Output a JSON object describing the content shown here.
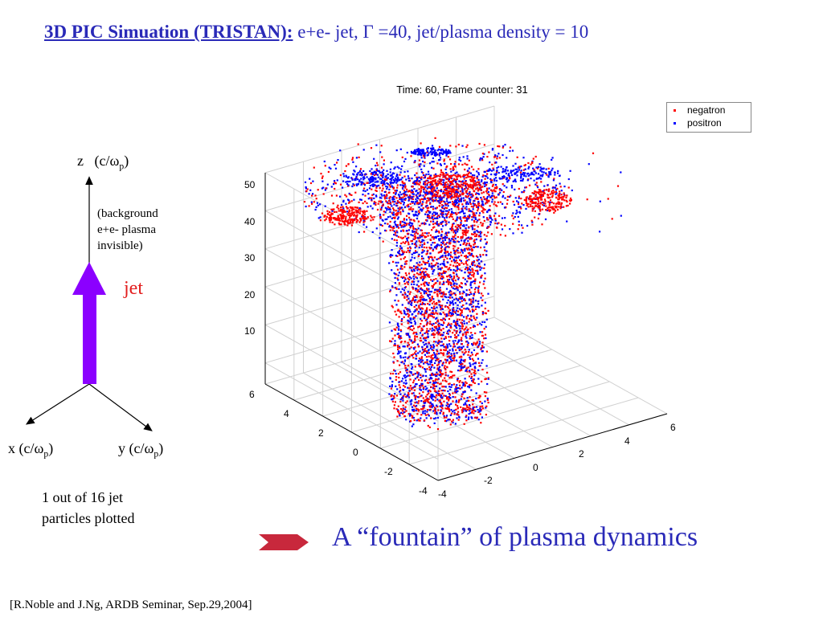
{
  "slide": {
    "title_bold": "3D PIC Simuation (TRISTAN):",
    "title_rest": " e+e- jet, Γ =40, jet/plasma density = 10",
    "fountain_text": "A “fountain” of plasma dynamics",
    "citation": "[R.Noble and J.Ng, ARDB Seminar, Sep.29,2004]"
  },
  "axes_diagram": {
    "z_label": "z",
    "z_unit": "(c/ω",
    "z_sub": "p",
    "x_label": "x (c/ω",
    "x_sub": "p",
    "y_label": "y (c/ω",
    "y_sub": "p",
    "close_paren": ")",
    "background_note_1": "(background",
    "background_note_2": "e+e- plasma",
    "background_note_3": "invisible)",
    "jet_label": "jet",
    "note_line1": "1 out of 16 jet",
    "note_line2": "particles plotted",
    "arrow_color": "#8b00ff"
  },
  "chart_data": {
    "type": "scatter",
    "title": "Time: 60, Frame counter: 31",
    "dimensions": 3,
    "legend": [
      "negatron",
      "positron"
    ],
    "legend_position": "top-right",
    "series": [
      {
        "name": "negatron",
        "color": "#ff0000"
      },
      {
        "name": "positron",
        "color": "#0000ff"
      }
    ],
    "z_ticks": [
      "10",
      "20",
      "30",
      "40",
      "50"
    ],
    "z_range": [
      0,
      55
    ],
    "x_ticks": [
      "6",
      "4",
      "2",
      "0",
      "-2",
      "-4"
    ],
    "y_ticks": [
      "-4",
      "-2",
      "0",
      "2",
      "4",
      "6"
    ],
    "grid": true
  }
}
